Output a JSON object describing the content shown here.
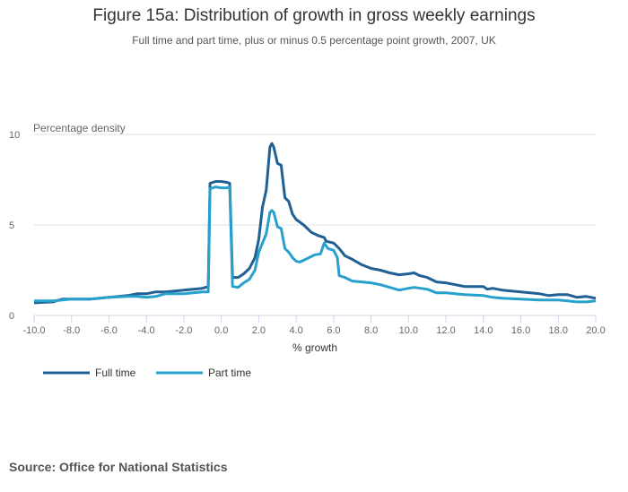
{
  "chart_data": {
    "type": "line",
    "title": "Figure 15a: Distribution of growth in gross weekly earnings",
    "subtitle": "Full time and part time, plus or minus 0.5 percentage point growth, 2007, UK",
    "xlabel": "% growth",
    "ylabel": "Percentage density",
    "xlim": [
      -10,
      20
    ],
    "ylim": [
      0,
      10
    ],
    "xticks": [
      "-10.0",
      "-8.0",
      "-6.0",
      "-4.0",
      "-2.0",
      "0.0",
      "2.0",
      "4.0",
      "6.0",
      "8.0",
      "10.0",
      "12.0",
      "14.0",
      "16.0",
      "18.0",
      "20.0"
    ],
    "yticks": [
      "0",
      "5",
      "10"
    ],
    "grid": true,
    "legend_position": "bottom-left",
    "series": [
      {
        "name": "Full time",
        "color": "#206095",
        "x": [
          -10,
          -9,
          -8.5,
          -8,
          -7,
          -6,
          -5,
          -4.5,
          -4,
          -3.5,
          -3,
          -2.5,
          -2,
          -1.5,
          -1,
          -0.7,
          -0.6,
          -0.3,
          0,
          0.3,
          0.45,
          0.6,
          0.9,
          1.2,
          1.5,
          1.8,
          2.0,
          2.2,
          2.4,
          2.6,
          2.7,
          2.8,
          3.0,
          3.2,
          3.4,
          3.6,
          3.8,
          4.0,
          4.4,
          4.8,
          5.2,
          5.5,
          5.6,
          6.0,
          6.3,
          6.6,
          7.0,
          7.5,
          8.0,
          8.5,
          9.0,
          9.5,
          10.0,
          10.3,
          10.6,
          11.0,
          11.5,
          12,
          12.5,
          13,
          14,
          14.2,
          14.5,
          15,
          16,
          17,
          17.5,
          18,
          18.5,
          19,
          19.5,
          20
        ],
        "y": [
          0.7,
          0.75,
          0.9,
          0.9,
          0.9,
          1.0,
          1.1,
          1.2,
          1.2,
          1.3,
          1.3,
          1.35,
          1.4,
          1.45,
          1.5,
          1.6,
          7.3,
          7.4,
          7.4,
          7.35,
          7.3,
          2.1,
          2.1,
          2.3,
          2.6,
          3.2,
          4.2,
          6.0,
          6.9,
          9.3,
          9.5,
          9.3,
          8.4,
          8.3,
          6.5,
          6.3,
          5.6,
          5.3,
          5.0,
          4.6,
          4.4,
          4.3,
          4.1,
          4.0,
          3.7,
          3.3,
          3.1,
          2.8,
          2.6,
          2.5,
          2.35,
          2.25,
          2.3,
          2.35,
          2.2,
          2.1,
          1.85,
          1.8,
          1.7,
          1.6,
          1.6,
          1.45,
          1.5,
          1.4,
          1.3,
          1.2,
          1.1,
          1.15,
          1.15,
          1.0,
          1.05,
          0.95
        ]
      },
      {
        "name": "Part time",
        "color": "#27a0cc",
        "x": [
          -10,
          -9,
          -8.5,
          -8,
          -7,
          -6,
          -5,
          -4.5,
          -4,
          -3.5,
          -3,
          -2.5,
          -2,
          -1.5,
          -1,
          -0.7,
          -0.6,
          -0.3,
          0,
          0.3,
          0.45,
          0.6,
          0.9,
          1.2,
          1.5,
          1.8,
          2.0,
          2.2,
          2.4,
          2.6,
          2.7,
          2.8,
          3.0,
          3.2,
          3.4,
          3.6,
          3.8,
          4.0,
          4.2,
          4.5,
          5.0,
          5.3,
          5.5,
          5.7,
          6.0,
          6.2,
          6.3,
          6.6,
          7.0,
          8.0,
          8.5,
          9.0,
          9.5,
          10.0,
          10.3,
          11.0,
          11.5,
          12,
          12.5,
          13,
          14,
          14.5,
          15,
          16,
          17,
          18,
          18.5,
          19,
          19.5,
          20
        ],
        "y": [
          0.8,
          0.8,
          0.85,
          0.9,
          0.9,
          1.0,
          1.05,
          1.05,
          1.0,
          1.05,
          1.2,
          1.2,
          1.2,
          1.25,
          1.3,
          1.3,
          7.0,
          7.1,
          7.05,
          7.05,
          7.1,
          1.6,
          1.55,
          1.8,
          2.0,
          2.5,
          3.5,
          4.0,
          4.5,
          5.7,
          5.8,
          5.7,
          4.9,
          4.8,
          3.7,
          3.5,
          3.2,
          3.0,
          2.95,
          3.1,
          3.35,
          3.4,
          4.0,
          3.7,
          3.6,
          3.2,
          2.2,
          2.1,
          1.9,
          1.8,
          1.7,
          1.55,
          1.4,
          1.5,
          1.55,
          1.45,
          1.25,
          1.25,
          1.2,
          1.15,
          1.1,
          1.0,
          0.95,
          0.9,
          0.85,
          0.85,
          0.8,
          0.75,
          0.75,
          0.8
        ]
      }
    ],
    "source": "Source: Office for National Statistics"
  }
}
